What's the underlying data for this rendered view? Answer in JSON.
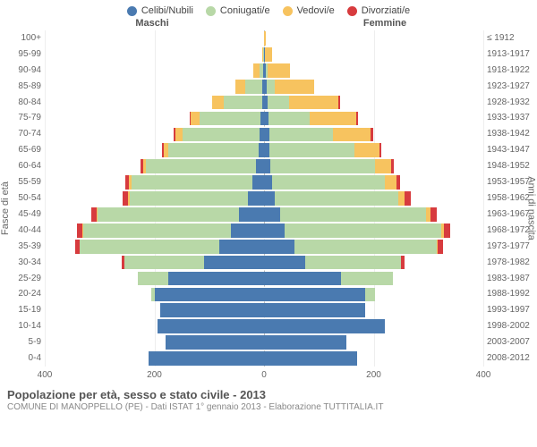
{
  "legend": [
    {
      "label": "Celibi/Nubili",
      "color": "#4a7ab0"
    },
    {
      "label": "Coniugati/e",
      "color": "#b8d8a7"
    },
    {
      "label": "Vedovi/e",
      "color": "#f7c35f"
    },
    {
      "label": "Divorziati/e",
      "color": "#d73b3e"
    }
  ],
  "columns": {
    "male": "Maschi",
    "female": "Femmine"
  },
  "axis_labels": {
    "left": "Fasce di età",
    "right": "Anni di nascita"
  },
  "chart": {
    "type": "population-pyramid",
    "max_value": 400,
    "x_ticks": [
      400,
      200,
      0,
      200,
      400
    ],
    "background_color": "#ffffff",
    "grid_color": "#eeeeee",
    "bar_gap_pct": 0.12,
    "label_fontsize": 10,
    "axis_fontsize": 11,
    "colors": {
      "single": "#4a7ab0",
      "married": "#b8d8a7",
      "widowed": "#f7c35f",
      "divorced": "#d73b3e"
    },
    "rows": [
      {
        "age": "0-4",
        "birth": "2008-2012",
        "m": {
          "s": 210,
          "c": 0,
          "w": 0,
          "d": 0
        },
        "f": {
          "s": 170,
          "c": 0,
          "w": 0,
          "d": 0
        }
      },
      {
        "age": "5-9",
        "birth": "2003-2007",
        "m": {
          "s": 180,
          "c": 0,
          "w": 0,
          "d": 0
        },
        "f": {
          "s": 150,
          "c": 0,
          "w": 0,
          "d": 0
        }
      },
      {
        "age": "10-14",
        "birth": "1998-2002",
        "m": {
          "s": 195,
          "c": 0,
          "w": 0,
          "d": 0
        },
        "f": {
          "s": 220,
          "c": 0,
          "w": 0,
          "d": 0
        }
      },
      {
        "age": "15-19",
        "birth": "1993-1997",
        "m": {
          "s": 190,
          "c": 0,
          "w": 0,
          "d": 0
        },
        "f": {
          "s": 185,
          "c": 0,
          "w": 0,
          "d": 0
        }
      },
      {
        "age": "20-24",
        "birth": "1988-1992",
        "m": {
          "s": 200,
          "c": 5,
          "w": 0,
          "d": 0
        },
        "f": {
          "s": 185,
          "c": 18,
          "w": 0,
          "d": 0
        }
      },
      {
        "age": "25-29",
        "birth": "1983-1987",
        "m": {
          "s": 175,
          "c": 55,
          "w": 0,
          "d": 0
        },
        "f": {
          "s": 140,
          "c": 95,
          "w": 0,
          "d": 0
        }
      },
      {
        "age": "30-34",
        "birth": "1978-1982",
        "m": {
          "s": 110,
          "c": 145,
          "w": 0,
          "d": 4
        },
        "f": {
          "s": 75,
          "c": 175,
          "w": 0,
          "d": 6
        }
      },
      {
        "age": "35-39",
        "birth": "1973-1977",
        "m": {
          "s": 82,
          "c": 255,
          "w": 0,
          "d": 8
        },
        "f": {
          "s": 55,
          "c": 260,
          "w": 2,
          "d": 10
        }
      },
      {
        "age": "40-44",
        "birth": "1968-1972",
        "m": {
          "s": 60,
          "c": 270,
          "w": 2,
          "d": 10
        },
        "f": {
          "s": 38,
          "c": 285,
          "w": 5,
          "d": 12
        }
      },
      {
        "age": "45-49",
        "birth": "1963-1967",
        "m": {
          "s": 45,
          "c": 258,
          "w": 2,
          "d": 10
        },
        "f": {
          "s": 30,
          "c": 265,
          "w": 8,
          "d": 12
        }
      },
      {
        "age": "50-54",
        "birth": "1958-1962",
        "m": {
          "s": 30,
          "c": 215,
          "w": 3,
          "d": 10
        },
        "f": {
          "s": 20,
          "c": 225,
          "w": 12,
          "d": 10
        }
      },
      {
        "age": "55-59",
        "birth": "1953-1957",
        "m": {
          "s": 22,
          "c": 220,
          "w": 5,
          "d": 6
        },
        "f": {
          "s": 15,
          "c": 205,
          "w": 22,
          "d": 6
        }
      },
      {
        "age": "60-64",
        "birth": "1948-1952",
        "m": {
          "s": 15,
          "c": 200,
          "w": 6,
          "d": 4
        },
        "f": {
          "s": 12,
          "c": 190,
          "w": 30,
          "d": 5
        }
      },
      {
        "age": "65-69",
        "birth": "1943-1947",
        "m": {
          "s": 10,
          "c": 165,
          "w": 8,
          "d": 3
        },
        "f": {
          "s": 10,
          "c": 155,
          "w": 45,
          "d": 4
        }
      },
      {
        "age": "70-74",
        "birth": "1938-1942",
        "m": {
          "s": 8,
          "c": 140,
          "w": 14,
          "d": 3
        },
        "f": {
          "s": 10,
          "c": 115,
          "w": 70,
          "d": 4
        }
      },
      {
        "age": "75-79",
        "birth": "1933-1937",
        "m": {
          "s": 6,
          "c": 112,
          "w": 16,
          "d": 2
        },
        "f": {
          "s": 8,
          "c": 75,
          "w": 85,
          "d": 3
        }
      },
      {
        "age": "80-84",
        "birth": "1928-1932",
        "m": {
          "s": 4,
          "c": 70,
          "w": 20,
          "d": 0
        },
        "f": {
          "s": 6,
          "c": 40,
          "w": 90,
          "d": 2
        }
      },
      {
        "age": "85-89",
        "birth": "1923-1927",
        "m": {
          "s": 3,
          "c": 32,
          "w": 18,
          "d": 0
        },
        "f": {
          "s": 5,
          "c": 15,
          "w": 72,
          "d": 0
        }
      },
      {
        "age": "90-94",
        "birth": "1918-1922",
        "m": {
          "s": 1,
          "c": 8,
          "w": 10,
          "d": 0
        },
        "f": {
          "s": 3,
          "c": 4,
          "w": 40,
          "d": 0
        }
      },
      {
        "age": "95-99",
        "birth": "1913-1917",
        "m": {
          "s": 0,
          "c": 1,
          "w": 3,
          "d": 0
        },
        "f": {
          "s": 1,
          "c": 1,
          "w": 12,
          "d": 0
        }
      },
      {
        "age": "100+",
        "birth": "≤ 1912",
        "m": {
          "s": 0,
          "c": 0,
          "w": 0,
          "d": 0
        },
        "f": {
          "s": 0,
          "c": 0,
          "w": 4,
          "d": 0
        }
      }
    ]
  },
  "footer": {
    "title": "Popolazione per età, sesso e stato civile - 2013",
    "subtitle": "COMUNE DI MANOPPELLO (PE) - Dati ISTAT 1° gennaio 2013 - Elaborazione TUTTITALIA.IT"
  }
}
